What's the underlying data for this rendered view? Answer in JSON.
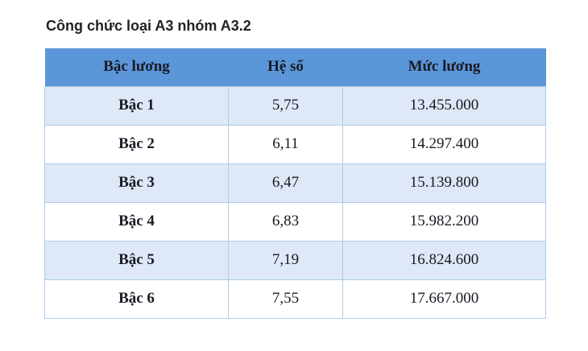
{
  "page": {
    "title": "Công chức loại A3 nhóm A3.2"
  },
  "table": {
    "columns": [
      "Bậc lương",
      "Hệ số",
      "Mức lương"
    ],
    "rows": [
      [
        "Bậc 1",
        "5,75",
        "13.455.000"
      ],
      [
        "Bậc 2",
        "6,11",
        "14.297.400"
      ],
      [
        "Bậc 3",
        "6,47",
        "15.139.800"
      ],
      [
        "Bậc 4",
        "6,83",
        "15.982.200"
      ],
      [
        "Bậc 5",
        "7,19",
        "16.824.600"
      ],
      [
        "Bậc 6",
        "7,55",
        "17.667.000"
      ]
    ]
  },
  "colors": {
    "header_bg": "#5B96D8",
    "row_alt_bg": "#DEE8F6",
    "row_bg": "#FFFFFF",
    "border_color": "#AECBE9",
    "text_color": "#1A1A24",
    "title_color": "#232323"
  }
}
